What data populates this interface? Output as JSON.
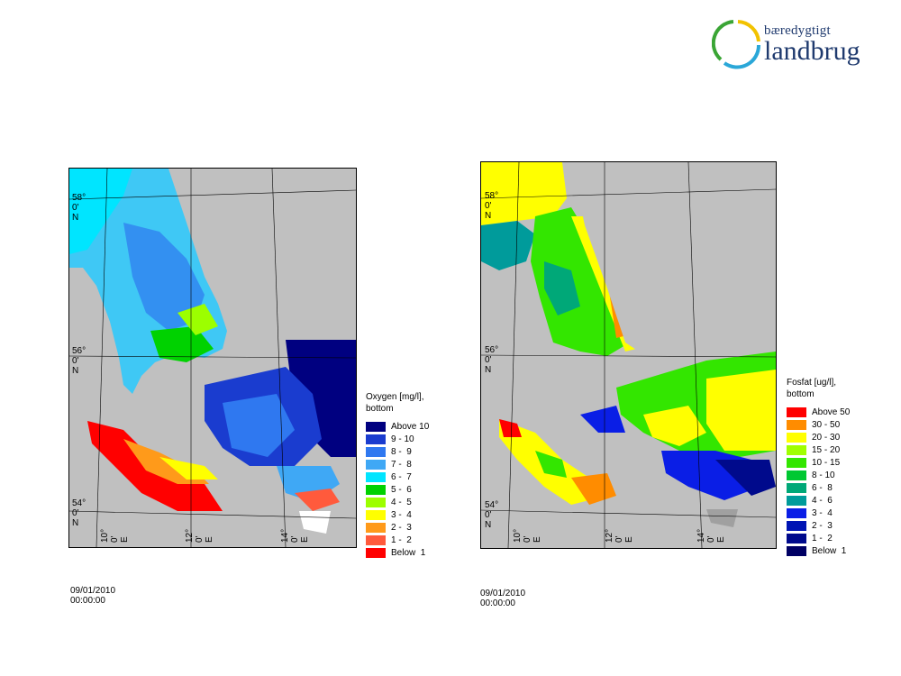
{
  "logo": {
    "line1": "bæredygtigt",
    "line2": "landbrug"
  },
  "maps": [
    {
      "legend_title": "Oxygen [mg/l],\nbottom",
      "legend": [
        {
          "label": "Above 10",
          "color": "#000080"
        },
        {
          "label": "9 - 10",
          "color": "#1a3ccf"
        },
        {
          "label": "8 -  9",
          "color": "#2f78f0"
        },
        {
          "label": "7 -  8",
          "color": "#3fa8f5"
        },
        {
          "label": "6 -  7",
          "color": "#00e5ff"
        },
        {
          "label": "5 -  6",
          "color": "#00d200"
        },
        {
          "label": "4 -  5",
          "color": "#9cff00"
        },
        {
          "label": "3 -  4",
          "color": "#ffff00"
        },
        {
          "label": "2 -  3",
          "color": "#ff9a1a"
        },
        {
          "label": "1 -  2",
          "color": "#ff5a3c"
        },
        {
          "label": "Below  1",
          "color": "#ff0000"
        }
      ],
      "lat_labels": [
        "58° 0' N",
        "56° 0' N",
        "54° 0' N"
      ],
      "lon_labels": [
        "10° 0' E",
        "12° 0' E",
        "14° 0' E"
      ],
      "timestamp": "09/01/2010 00:00:00"
    },
    {
      "legend_title": "Fosfat [ug/l],\nbottom",
      "legend": [
        {
          "label": "Above 50",
          "color": "#ff0000"
        },
        {
          "label": "30 - 50",
          "color": "#ff8c00"
        },
        {
          "label": "20 - 30",
          "color": "#ffff00"
        },
        {
          "label": "15 - 20",
          "color": "#a0ff00"
        },
        {
          "label": "10 - 15",
          "color": "#33e600"
        },
        {
          "label": "8 - 10",
          "color": "#00c832"
        },
        {
          "label": "6 -  8",
          "color": "#00a878"
        },
        {
          "label": "4 -  6",
          "color": "#009b9b"
        },
        {
          "label": "3 -  4",
          "color": "#0a1ee6"
        },
        {
          "label": "2 -  3",
          "color": "#0014b4"
        },
        {
          "label": "1 -  2",
          "color": "#000a8c"
        },
        {
          "label": "Below  1",
          "color": "#000064"
        }
      ],
      "lat_labels": [
        "58° 0' N",
        "56° 0' N",
        "54° 0' N"
      ],
      "lon_labels": [
        "10° 0' E",
        "12° 0' E",
        "14° 0' E"
      ],
      "timestamp": "09/01/2010 00:00:00"
    }
  ]
}
